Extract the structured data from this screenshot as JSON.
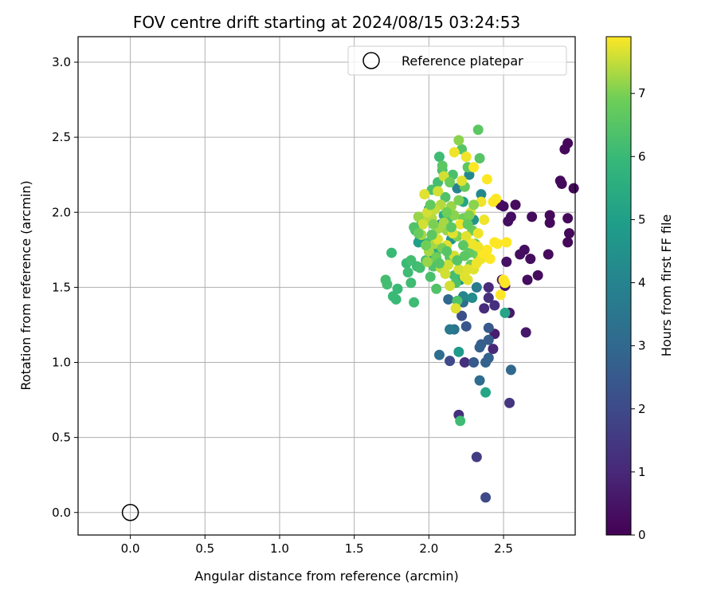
{
  "chart_data": {
    "type": "scatter",
    "title": "FOV centre drift starting at 2024/08/15 03:24:53",
    "xlabel": "Angular distance from reference (arcmin)",
    "ylabel": "Rotation from reference (arcmin)",
    "xlim": [
      -0.35,
      2.98
    ],
    "ylim": [
      -0.15,
      3.17
    ],
    "xticks": [
      0.0,
      0.5,
      1.0,
      1.5,
      2.0,
      2.5
    ],
    "yticks": [
      0.0,
      0.5,
      1.0,
      1.5,
      2.0,
      2.5,
      3.0
    ],
    "xtick_labels": [
      "0.0",
      "0.5",
      "1.0",
      "1.5",
      "2.0",
      "2.5"
    ],
    "ytick_labels": [
      "0.0",
      "0.5",
      "1.0",
      "1.5",
      "2.0",
      "2.5",
      "3.0"
    ],
    "grid": true,
    "legend": {
      "placement": "top-right",
      "entries": [
        {
          "label": "Reference platepar",
          "marker": "open-circle"
        }
      ]
    },
    "reference_point": {
      "x": 0.0,
      "y": 0.0
    },
    "colorbar": {
      "label": "Hours from first FF file",
      "colormap": "viridis",
      "range": [
        0,
        7.9
      ],
      "ticks": [
        0,
        1,
        2,
        3,
        4,
        5,
        6,
        7
      ],
      "tick_labels": [
        "0",
        "1",
        "2",
        "3",
        "4",
        "5",
        "6",
        "7"
      ]
    },
    "series": [
      {
        "color_by": "hours",
        "points": [
          [
            2.93,
            2.46,
            0.2
          ],
          [
            2.91,
            2.42,
            0.2
          ],
          [
            2.97,
            2.16,
            0.2
          ],
          [
            2.89,
            2.19,
            0.2
          ],
          [
            2.88,
            2.21,
            0.2
          ],
          [
            2.93,
            1.96,
            0.2
          ],
          [
            2.94,
            1.86,
            0.2
          ],
          [
            2.93,
            1.8,
            0.2
          ],
          [
            2.81,
            1.98,
            0.2
          ],
          [
            2.81,
            1.93,
            0.2
          ],
          [
            2.8,
            1.72,
            0.25
          ],
          [
            2.69,
            1.97,
            0.25
          ],
          [
            2.73,
            1.58,
            0.25
          ],
          [
            2.66,
            1.55,
            0.3
          ],
          [
            2.68,
            1.69,
            0.3
          ],
          [
            2.64,
            1.75,
            0.3
          ],
          [
            2.61,
            1.72,
            0.3
          ],
          [
            2.58,
            2.05,
            0.25
          ],
          [
            2.55,
            1.97,
            0.3
          ],
          [
            2.53,
            1.94,
            0.3
          ],
          [
            2.5,
            2.04,
            0.3
          ],
          [
            2.48,
            2.05,
            0.3
          ],
          [
            2.52,
            1.67,
            0.4
          ],
          [
            2.49,
            1.55,
            0.4
          ],
          [
            2.51,
            1.51,
            0.5
          ],
          [
            2.54,
            1.33,
            0.6
          ],
          [
            2.65,
            1.2,
            0.6
          ],
          [
            2.44,
            1.19,
            0.7
          ],
          [
            2.43,
            1.09,
            1.0
          ],
          [
            2.37,
            1.36,
            1.1
          ],
          [
            2.4,
            1.5,
            1.1
          ],
          [
            2.44,
            1.38,
            1.2
          ],
          [
            2.4,
            1.43,
            1.3
          ],
          [
            2.24,
            1.0,
            1.2
          ],
          [
            2.54,
            0.73,
            1.4
          ],
          [
            2.2,
            0.65,
            1.2
          ],
          [
            2.32,
            0.37,
            1.6
          ],
          [
            2.38,
            0.1,
            2.0
          ],
          [
            2.14,
            1.01,
            2.0
          ],
          [
            2.22,
            1.31,
            2.2
          ],
          [
            2.25,
            1.24,
            2.4
          ],
          [
            2.4,
            1.23,
            2.5
          ],
          [
            2.35,
            1.12,
            2.6
          ],
          [
            2.4,
            1.15,
            2.6
          ],
          [
            2.34,
            1.1,
            2.7
          ],
          [
            2.38,
            1.0,
            2.8
          ],
          [
            2.4,
            1.03,
            2.8
          ],
          [
            2.55,
            0.95,
            3.0
          ],
          [
            2.34,
            0.88,
            3.1
          ],
          [
            2.07,
            1.05,
            3.2
          ],
          [
            2.3,
            1.0,
            2.5
          ],
          [
            2.17,
            1.22,
            3.4
          ],
          [
            2.14,
            1.22,
            3.6
          ],
          [
            2.23,
            1.4,
            3.2
          ],
          [
            2.13,
            1.42,
            3.0
          ],
          [
            2.23,
            1.44,
            4.1
          ],
          [
            2.29,
            1.43,
            4.3
          ],
          [
            2.2,
            1.07,
            4.8
          ],
          [
            2.38,
            0.8,
            5.2
          ],
          [
            2.51,
            1.33,
            5.2
          ],
          [
            2.32,
            1.5,
            3.7
          ],
          [
            2.21,
            1.55,
            4.5
          ],
          [
            2.19,
            2.16,
            4.0
          ],
          [
            2.35,
            2.12,
            4.2
          ],
          [
            2.27,
            2.25,
            4.2
          ],
          [
            1.94,
            1.82,
            4.5
          ],
          [
            2.02,
            1.72,
            4.8
          ],
          [
            2.08,
            1.92,
            3.8
          ],
          [
            1.93,
            1.8,
            5.0
          ],
          [
            2.15,
            1.82,
            4.6
          ],
          [
            2.3,
            1.95,
            4.6
          ],
          [
            2.0,
            2.02,
            4.9
          ],
          [
            2.23,
            2.07,
            5.2
          ],
          [
            2.1,
            1.98,
            5.5
          ],
          [
            2.06,
            1.75,
            5.6
          ],
          [
            1.71,
            1.55,
            6.2
          ],
          [
            1.72,
            1.52,
            6.2
          ],
          [
            1.75,
            1.73,
            6.0
          ],
          [
            1.76,
            1.44,
            6.0
          ],
          [
            1.78,
            1.42,
            6.0
          ],
          [
            1.79,
            1.49,
            6.0
          ],
          [
            1.85,
            1.66,
            6.0
          ],
          [
            1.86,
            1.6,
            6.1
          ],
          [
            1.88,
            1.53,
            6.1
          ],
          [
            1.88,
            1.68,
            6.2
          ],
          [
            1.9,
            1.4,
            6.1
          ],
          [
            1.92,
            1.64,
            6.1
          ],
          [
            1.94,
            1.63,
            6.2
          ],
          [
            1.91,
            1.88,
            6.1
          ],
          [
            1.95,
            1.92,
            6.2
          ],
          [
            1.98,
            1.68,
            6.2
          ],
          [
            2.0,
            1.8,
            6.3
          ],
          [
            2.01,
            1.57,
            6.3
          ],
          [
            2.03,
            1.64,
            6.4
          ],
          [
            2.05,
            1.49,
            6.4
          ],
          [
            2.06,
            2.2,
            6.2
          ],
          [
            2.07,
            2.37,
            6.1
          ],
          [
            2.09,
            2.28,
            6.3
          ],
          [
            2.11,
            2.1,
            6.4
          ],
          [
            2.02,
            2.15,
            6.3
          ],
          [
            2.13,
            1.96,
            6.4
          ],
          [
            2.14,
            1.7,
            6.5
          ],
          [
            2.16,
            2.25,
            6.3
          ],
          [
            2.17,
            1.58,
            6.2
          ],
          [
            2.18,
            1.53,
            6.3
          ],
          [
            2.19,
            1.41,
            6.4
          ],
          [
            2.21,
            0.61,
            6.1
          ],
          [
            2.22,
            2.42,
            6.5
          ],
          [
            2.33,
            2.55,
            6.6
          ],
          [
            2.34,
            2.36,
            6.5
          ],
          [
            2.26,
            2.3,
            6.6
          ],
          [
            2.24,
            2.17,
            6.7
          ],
          [
            2.29,
            1.88,
            6.8
          ],
          [
            2.31,
            1.79,
            6.8
          ],
          [
            2.32,
            1.72,
            6.9
          ],
          [
            2.28,
            1.65,
            6.8
          ],
          [
            2.27,
            1.73,
            6.7
          ],
          [
            2.24,
            1.71,
            6.6
          ],
          [
            2.23,
            1.96,
            6.9
          ],
          [
            2.19,
            1.84,
            7.0
          ],
          [
            2.2,
            2.48,
            7.1
          ],
          [
            2.17,
            1.98,
            7.1
          ],
          [
            2.15,
            2.04,
            7.2
          ],
          [
            2.12,
            1.88,
            7.2
          ],
          [
            2.1,
            1.93,
            7.3
          ],
          [
            2.08,
            2.05,
            7.4
          ],
          [
            2.06,
            1.89,
            7.3
          ],
          [
            2.04,
            1.79,
            7.3
          ],
          [
            2.02,
            1.96,
            7.4
          ],
          [
            2.0,
            1.74,
            7.3
          ],
          [
            1.99,
            1.67,
            7.2
          ],
          [
            1.97,
            1.94,
            7.4
          ],
          [
            1.95,
            1.85,
            7.3
          ],
          [
            1.93,
            1.97,
            7.2
          ],
          [
            1.97,
            2.12,
            7.7
          ],
          [
            2.08,
            1.63,
            7.5
          ],
          [
            2.11,
            1.59,
            7.6
          ],
          [
            2.13,
            1.65,
            7.6
          ],
          [
            2.14,
            1.51,
            7.6
          ],
          [
            2.18,
            1.36,
            7.7
          ],
          [
            2.2,
            1.62,
            7.6
          ],
          [
            2.24,
            1.57,
            7.7
          ],
          [
            2.26,
            1.55,
            7.7
          ],
          [
            2.3,
            1.62,
            7.7
          ],
          [
            2.32,
            1.66,
            7.8
          ],
          [
            2.35,
            1.69,
            7.8
          ],
          [
            2.36,
            1.73,
            7.9
          ],
          [
            2.39,
            1.75,
            7.9
          ],
          [
            2.41,
            1.69,
            7.9
          ],
          [
            2.44,
            1.8,
            7.9
          ],
          [
            2.46,
            1.79,
            7.9
          ],
          [
            2.48,
            1.45,
            7.9
          ],
          [
            2.5,
            1.55,
            7.9
          ],
          [
            2.51,
            1.53,
            7.9
          ],
          [
            2.52,
            1.8,
            7.9
          ],
          [
            2.43,
            2.07,
            7.9
          ],
          [
            2.45,
            2.09,
            7.9
          ],
          [
            2.39,
            2.22,
            7.9
          ],
          [
            2.3,
            2.3,
            7.9
          ],
          [
            2.25,
            2.37,
            7.8
          ],
          [
            2.17,
            2.4,
            7.8
          ],
          [
            2.35,
            2.07,
            7.8
          ],
          [
            2.37,
            1.95,
            7.8
          ],
          [
            2.33,
            1.86,
            7.8
          ],
          [
            2.28,
            2.0,
            7.7
          ],
          [
            2.22,
            2.21,
            7.7
          ],
          [
            2.1,
            2.24,
            7.6
          ],
          [
            2.06,
            2.14,
            7.6
          ],
          [
            2.04,
            2.02,
            7.5
          ],
          [
            1.99,
            2.0,
            7.6
          ],
          [
            1.96,
            1.92,
            7.6
          ],
          [
            2.06,
            1.82,
            7.7
          ],
          [
            2.12,
            1.78,
            7.7
          ],
          [
            2.16,
            1.86,
            7.7
          ],
          [
            2.21,
            1.92,
            7.8
          ],
          [
            2.25,
            1.84,
            7.7
          ],
          [
            2.29,
            1.79,
            7.8
          ],
          [
            2.33,
            1.77,
            7.8
          ],
          [
            2.26,
            1.62,
            7.7
          ],
          [
            2.17,
            1.71,
            7.6
          ],
          [
            1.9,
            1.9,
            6.4
          ],
          [
            1.93,
            1.86,
            6.8
          ],
          [
            1.98,
            1.78,
            6.9
          ],
          [
            2.03,
            1.92,
            7.0
          ],
          [
            2.05,
            1.7,
            6.9
          ],
          [
            2.09,
            1.76,
            7.0
          ],
          [
            2.12,
            2.0,
            6.9
          ],
          [
            2.2,
            2.08,
            7.0
          ],
          [
            2.27,
            1.98,
            7.0
          ],
          [
            2.3,
            2.05,
            7.1
          ],
          [
            2.14,
            2.2,
            6.8
          ],
          [
            2.09,
            2.31,
            6.6
          ],
          [
            2.01,
            2.05,
            6.7
          ],
          [
            2.15,
            1.9,
            6.6
          ],
          [
            2.23,
            1.78,
            6.6
          ],
          [
            2.19,
            1.68,
            6.5
          ],
          [
            2.07,
            1.66,
            6.5
          ],
          [
            2.02,
            1.85,
            6.6
          ],
          [
            2.12,
            1.74,
            6.5
          ],
          [
            2.26,
            1.92,
            6.7
          ]
        ]
      }
    ]
  }
}
